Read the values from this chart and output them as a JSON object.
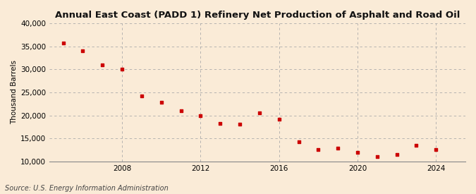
{
  "title": "Annual East Coast (PADD 1) Refinery Net Production of Asphalt and Road Oil",
  "ylabel": "Thousand Barrels",
  "source": "Source: U.S. Energy Information Administration",
  "background_color": "#faebd7",
  "marker_color": "#cc0000",
  "years": [
    2005,
    2006,
    2007,
    2008,
    2009,
    2010,
    2011,
    2012,
    2013,
    2014,
    2015,
    2016,
    2017,
    2018,
    2019,
    2020,
    2021,
    2022,
    2023,
    2024
  ],
  "values": [
    35800,
    34000,
    31000,
    30000,
    24200,
    22800,
    21000,
    20000,
    18200,
    18100,
    20500,
    19200,
    14300,
    12500,
    12800,
    12000,
    11000,
    11500,
    13500,
    12500
  ],
  "ylim": [
    10000,
    40000
  ],
  "yticks": [
    10000,
    15000,
    20000,
    25000,
    30000,
    35000,
    40000
  ],
  "xticks": [
    2008,
    2012,
    2016,
    2020,
    2024
  ],
  "xlim": [
    2004.3,
    2025.5
  ],
  "grid_color": "#aaaaaa",
  "title_fontsize": 9.5,
  "label_fontsize": 7.5,
  "tick_fontsize": 7.5,
  "source_fontsize": 7
}
